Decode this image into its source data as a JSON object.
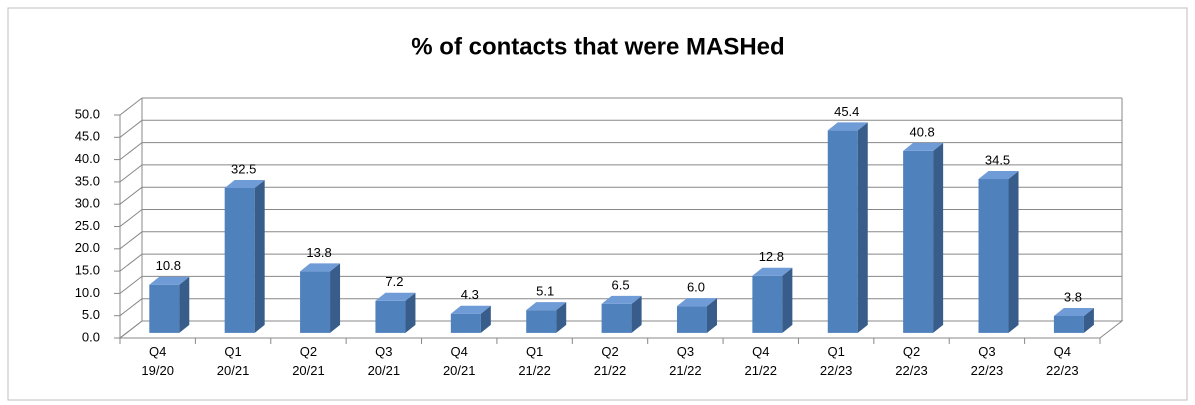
{
  "chart_data": {
    "type": "bar3d",
    "title": "% of contacts that were MASHed",
    "categories": [
      "Q4 19/20",
      "Q1 20/21",
      "Q2 20/21",
      "Q3 20/21",
      "Q4 20/21",
      "Q1 21/22",
      "Q2 21/22",
      "Q3 21/22",
      "Q4 21/22",
      "Q1 22/23",
      "Q2 22/23",
      "Q3 22/23",
      "Q4 22/23"
    ],
    "values": [
      10.8,
      32.5,
      13.8,
      7.2,
      4.3,
      5.1,
      6.5,
      6.0,
      12.8,
      45.4,
      40.8,
      34.5,
      3.8
    ],
    "value_labels": [
      "10.8",
      "32.5",
      "13.8",
      "7.2",
      "4.3",
      "5.1",
      "6.5",
      "6.0",
      "12.8",
      "45.4",
      "40.8",
      "34.5",
      "3.8"
    ],
    "color": "#4f81bd",
    "ylim": [
      0,
      50
    ],
    "yticks": [
      {
        "value": 0,
        "label": "0.0"
      },
      {
        "value": 5,
        "label": "5.0"
      },
      {
        "value": 10,
        "label": "10.0"
      },
      {
        "value": 15,
        "label": "15.0"
      },
      {
        "value": 20,
        "label": "20.0"
      },
      {
        "value": 25,
        "label": "25.0"
      },
      {
        "value": 30,
        "label": "30.0"
      },
      {
        "value": 35,
        "label": "35.0"
      },
      {
        "value": 40,
        "label": "40.0"
      },
      {
        "value": 45,
        "label": "45.0"
      },
      {
        "value": 50,
        "label": "50.0"
      }
    ],
    "grid": true
  }
}
